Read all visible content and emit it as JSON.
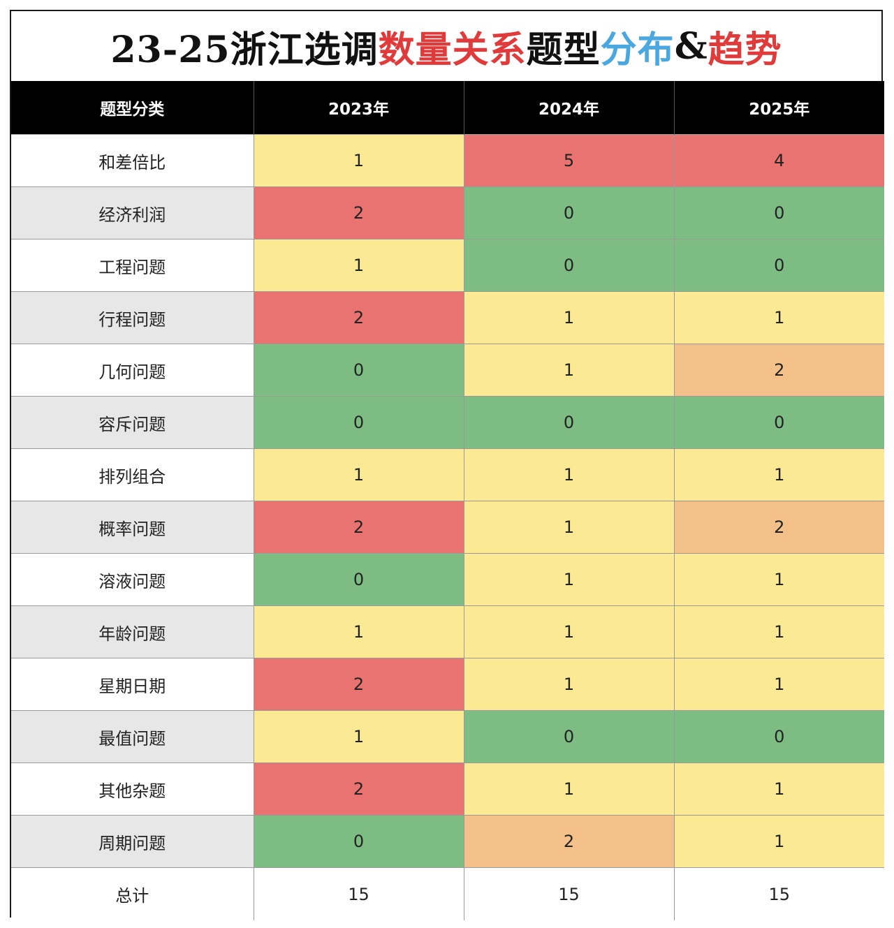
{
  "title": {
    "part1": "23-25浙江选调",
    "part2": "数量关系",
    "part3": "题型",
    "part4": "分布",
    "part5": "&",
    "part6": "趋势"
  },
  "chart_data": {
    "type": "table",
    "columns": [
      "题型分类",
      "2023年",
      "2024年",
      "2025年"
    ],
    "rows": [
      {
        "category": "和差倍比",
        "values": [
          1,
          5,
          4
        ]
      },
      {
        "category": "经济利润",
        "values": [
          2,
          0,
          0
        ]
      },
      {
        "category": "工程问题",
        "values": [
          1,
          0,
          0
        ]
      },
      {
        "category": "行程问题",
        "values": [
          2,
          1,
          1
        ]
      },
      {
        "category": "几何问题",
        "values": [
          0,
          1,
          2
        ]
      },
      {
        "category": "容斥问题",
        "values": [
          0,
          0,
          0
        ]
      },
      {
        "category": "排列组合",
        "values": [
          1,
          1,
          1
        ]
      },
      {
        "category": "概率问题",
        "values": [
          2,
          1,
          2
        ]
      },
      {
        "category": "溶液问题",
        "values": [
          0,
          1,
          1
        ]
      },
      {
        "category": "年龄问题",
        "values": [
          1,
          1,
          1
        ]
      },
      {
        "category": "星期日期",
        "values": [
          2,
          1,
          1
        ]
      },
      {
        "category": "最值问题",
        "values": [
          1,
          0,
          0
        ]
      },
      {
        "category": "其他杂题",
        "values": [
          2,
          1,
          1
        ]
      },
      {
        "category": "周期问题",
        "values": [
          0,
          2,
          1
        ]
      }
    ],
    "total": {
      "label": "总计",
      "values": [
        15,
        15,
        15
      ]
    },
    "colors": {
      "zero": "#7dbd84",
      "one": "#fbe994",
      "two_orange": "#f4c08a",
      "red": "#e87370"
    },
    "cell_colors": [
      [
        "one",
        "red",
        "red"
      ],
      [
        "red",
        "zero",
        "zero"
      ],
      [
        "one",
        "zero",
        "zero"
      ],
      [
        "red",
        "one",
        "one"
      ],
      [
        "zero",
        "one",
        "two_orange"
      ],
      [
        "zero",
        "zero",
        "zero"
      ],
      [
        "one",
        "one",
        "one"
      ],
      [
        "red",
        "one",
        "two_orange"
      ],
      [
        "zero",
        "one",
        "one"
      ],
      [
        "one",
        "one",
        "one"
      ],
      [
        "red",
        "one",
        "one"
      ],
      [
        "one",
        "zero",
        "zero"
      ],
      [
        "red",
        "one",
        "one"
      ],
      [
        "zero",
        "two_orange",
        "one"
      ]
    ]
  }
}
